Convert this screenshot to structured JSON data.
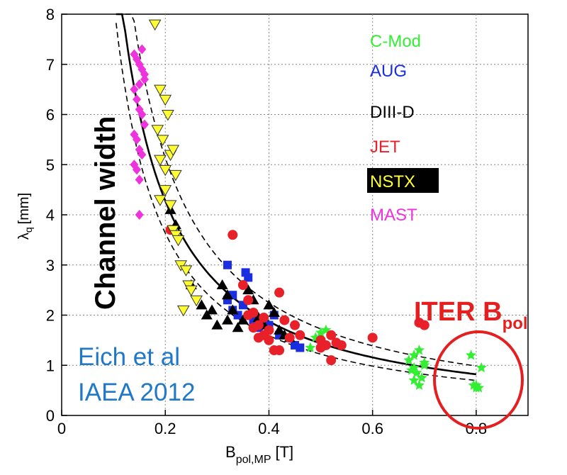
{
  "chart_data": {
    "type": "scatter",
    "xlabel": "B",
    "xlabel_sub": "pol,MP",
    "xlabel_unit": "[T]",
    "ylabel": "λ",
    "ylabel_sub": "q",
    "ylabel_unit": "[mm]",
    "xlim": [
      0,
      0.9
    ],
    "ylim": [
      0,
      8
    ],
    "xticks": [
      "0",
      "0.2",
      "0.4",
      "0.6",
      "0.8"
    ],
    "xtick_values": [
      0,
      0.2,
      0.4,
      0.6,
      0.8
    ],
    "yticks": [
      "0",
      "1",
      "2",
      "3",
      "4",
      "5",
      "6",
      "7",
      "8"
    ],
    "ytick_values": [
      0,
      1,
      2,
      3,
      4,
      5,
      6,
      7,
      8
    ],
    "grid": true,
    "legend_position": "top-right",
    "series": [
      {
        "name": "C-Mod",
        "color": "#33ee33",
        "marker": "star",
        "x": [
          0.49,
          0.5,
          0.51,
          0.48,
          0.67,
          0.68,
          0.69,
          0.7,
          0.675,
          0.685,
          0.695,
          0.68,
          0.69,
          0.7,
          0.68,
          0.79,
          0.8,
          0.81,
          0.8,
          0.805,
          0.795
        ],
        "y": [
          1.55,
          1.65,
          1.7,
          1.35,
          1.1,
          1.2,
          1.3,
          1.0,
          0.9,
          0.85,
          0.75,
          0.7,
          0.6,
          1.05,
          0.95,
          1.2,
          0.55,
          0.95,
          0.6,
          0.55,
          0.6
        ]
      },
      {
        "name": "AUG",
        "color": "#1a2ee0",
        "marker": "square",
        "x": [
          0.32,
          0.33,
          0.35,
          0.355,
          0.36,
          0.33,
          0.32,
          0.34,
          0.37,
          0.4,
          0.41,
          0.42,
          0.45,
          0.46,
          0.38
        ],
        "y": [
          3.0,
          2.4,
          2.2,
          2.85,
          2.75,
          2.1,
          2.3,
          2.0,
          1.9,
          1.8,
          2.0,
          1.6,
          1.4,
          1.35,
          1.75
        ]
      },
      {
        "name": "DIII-D",
        "color": "#000000",
        "marker": "triangle",
        "x": [
          0.21,
          0.22,
          0.25,
          0.27,
          0.28,
          0.3,
          0.31,
          0.32,
          0.33,
          0.35,
          0.36,
          0.37,
          0.38,
          0.39,
          0.4,
          0.41,
          0.42,
          0.43,
          0.44,
          0.34,
          0.32,
          0.29
        ],
        "y": [
          4.1,
          3.8,
          2.6,
          2.2,
          2.0,
          1.8,
          2.6,
          2.4,
          2.1,
          1.9,
          2.5,
          2.3,
          1.95,
          1.8,
          2.2,
          2.05,
          1.7,
          1.6,
          1.55,
          1.75,
          1.9,
          2.1
        ]
      },
      {
        "name": "JET",
        "color": "#e8202a",
        "marker": "circle",
        "x": [
          0.21,
          0.33,
          0.35,
          0.36,
          0.37,
          0.38,
          0.39,
          0.4,
          0.41,
          0.42,
          0.43,
          0.45,
          0.46,
          0.5,
          0.51,
          0.52,
          0.53,
          0.54,
          0.6,
          0.69,
          0.7,
          0.4,
          0.39,
          0.38,
          0.37,
          0.42,
          0.44,
          0.36,
          0.52,
          0.5
        ],
        "y": [
          3.7,
          3.6,
          2.6,
          2.3,
          2.05,
          1.8,
          1.6,
          1.5,
          1.3,
          2.45,
          1.9,
          1.8,
          1.6,
          1.5,
          1.4,
          1.1,
          1.45,
          1.4,
          1.55,
          1.85,
          1.8,
          1.7,
          1.95,
          1.55,
          1.75,
          1.3,
          1.55,
          2.0,
          1.6,
          1.35
        ]
      },
      {
        "name": "NSTX",
        "color": "#ffff33",
        "marker": "invtriangle",
        "x": [
          0.18,
          0.19,
          0.2,
          0.185,
          0.195,
          0.205,
          0.21,
          0.215,
          0.22,
          0.2,
          0.19,
          0.21,
          0.215,
          0.22,
          0.225,
          0.23,
          0.24,
          0.245,
          0.25,
          0.26,
          0.235,
          0.2,
          0.19
        ],
        "y": [
          7.8,
          6.5,
          6.3,
          5.7,
          5.5,
          6.0,
          5.2,
          5.3,
          4.8,
          4.5,
          4.3,
          4.2,
          3.7,
          3.6,
          3.5,
          3.0,
          2.9,
          2.6,
          2.5,
          2.3,
          2.1,
          4.9,
          5.1
        ]
      },
      {
        "name": "MAST",
        "color": "#ee33dd",
        "marker": "diamond",
        "x": [
          0.14,
          0.145,
          0.15,
          0.155,
          0.16,
          0.14,
          0.145,
          0.15,
          0.155,
          0.16,
          0.14,
          0.145,
          0.15,
          0.155,
          0.14,
          0.145,
          0.15,
          0.15,
          0.16,
          0.155,
          0.15
        ],
        "y": [
          7.2,
          7.1,
          7.0,
          6.9,
          6.8,
          6.5,
          6.3,
          6.1,
          6.0,
          5.8,
          5.6,
          5.5,
          5.3,
          5.2,
          5.0,
          4.9,
          4.7,
          4.0,
          6.7,
          7.3,
          6.6
        ]
      }
    ],
    "fit_curve": {
      "coefficient": 0.63,
      "exponent": -1.19,
      "band_upper": 1.2,
      "band_lower": 0.85,
      "x_start": 0.105,
      "x_end": 0.8
    },
    "annotations": {
      "channel_width": "Channel width",
      "iter_main": "ITER B",
      "iter_sub": "pol",
      "ref_line1": "Eich et al",
      "ref_line2": "IAEA 2012"
    },
    "colors": {
      "annotation_red": "#e51f1f",
      "reference_blue": "#1f78c8",
      "nstx_legend_bg": "#000000",
      "nstx_legend_text": "#ffff33"
    }
  }
}
